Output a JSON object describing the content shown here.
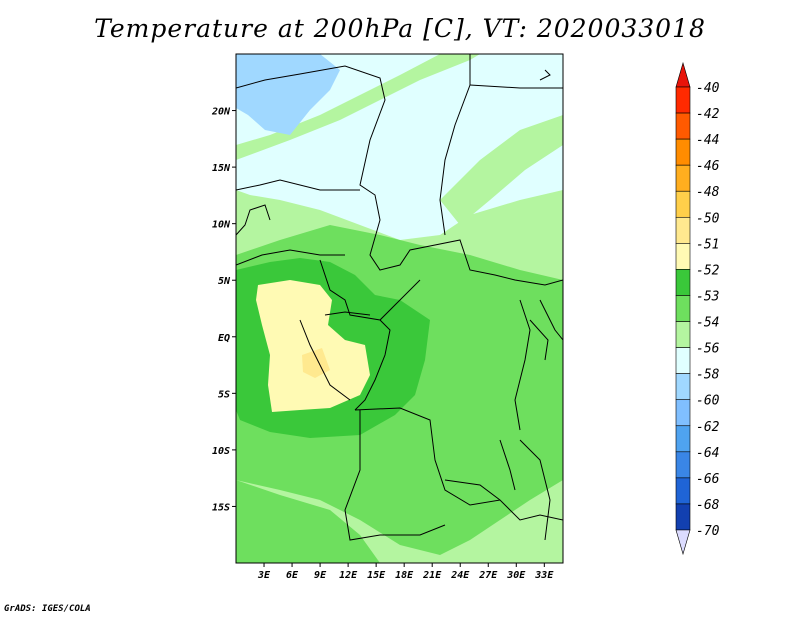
{
  "title": "Temperature at 200hPa [C], VT: 2020033018",
  "credit": "GrADS: IGES/COLA",
  "map": {
    "lon_range": [
      0,
      35
    ],
    "lat_range": [
      -20,
      25
    ],
    "x_ticks": [
      "3E",
      "6E",
      "9E",
      "12E",
      "15E",
      "18E",
      "21E",
      "24E",
      "27E",
      "30E",
      "33E"
    ],
    "x_tick_lons": [
      3,
      6,
      9,
      12,
      15,
      18,
      21,
      24,
      27,
      30,
      33
    ],
    "y_ticks": [
      "20N",
      "15N",
      "10N",
      "5N",
      "EQ",
      "5S",
      "10S",
      "15S"
    ],
    "y_tick_lats": [
      20,
      15,
      10,
      5,
      0,
      -5,
      -10,
      -15
    ]
  },
  "colorbar": {
    "labels": [
      "-40",
      "-42",
      "-44",
      "-46",
      "-48",
      "-50",
      "-51",
      "-52",
      "-53",
      "-54",
      "-56",
      "-58",
      "-60",
      "-62",
      "-64",
      "-66",
      "-68",
      "-70"
    ],
    "colors": [
      "#ff2a00",
      "#ff5a00",
      "#ff8c00",
      "#ffae1f",
      "#ffcf4a",
      "#ffe98f",
      "#fffab4",
      "#3ac83a",
      "#6edf5e",
      "#b4f5a0",
      "#e0ffff",
      "#a0d8ff",
      "#80bfff",
      "#4fa3f0",
      "#3a86e6",
      "#1f64d6",
      "#1240b0",
      "#0a1a80"
    ],
    "top_arrow_color": "#e8140a",
    "bottom_arrow_color": "#dcdcff"
  },
  "field_colors": {
    "c51": "#fffab4",
    "c50": "#ffe98f",
    "c52": "#3ac83a",
    "c53": "#6edf5e",
    "c54": "#b4f5a0",
    "c56": "#e0ffff",
    "c58": "#a0d8ff"
  }
}
